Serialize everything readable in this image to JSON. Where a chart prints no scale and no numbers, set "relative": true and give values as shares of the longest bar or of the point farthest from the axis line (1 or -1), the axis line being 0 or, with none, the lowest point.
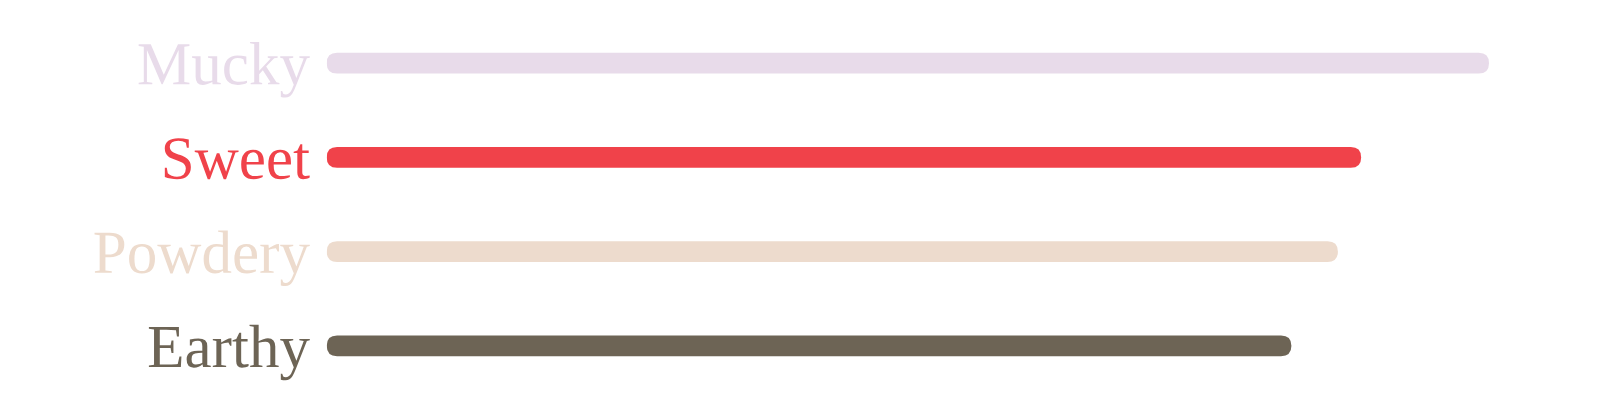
{
  "chart_data": {
    "type": "bar",
    "orientation": "horizontal",
    "relative": true,
    "categories": [
      "Mucky",
      "Sweet",
      "Powdery",
      "Earthy"
    ],
    "values": [
      1,
      0.89,
      0.87,
      0.83
    ],
    "colors": [
      "#e8dbea",
      "#f0424a",
      "#eddbcd",
      "#6d6455"
    ]
  }
}
